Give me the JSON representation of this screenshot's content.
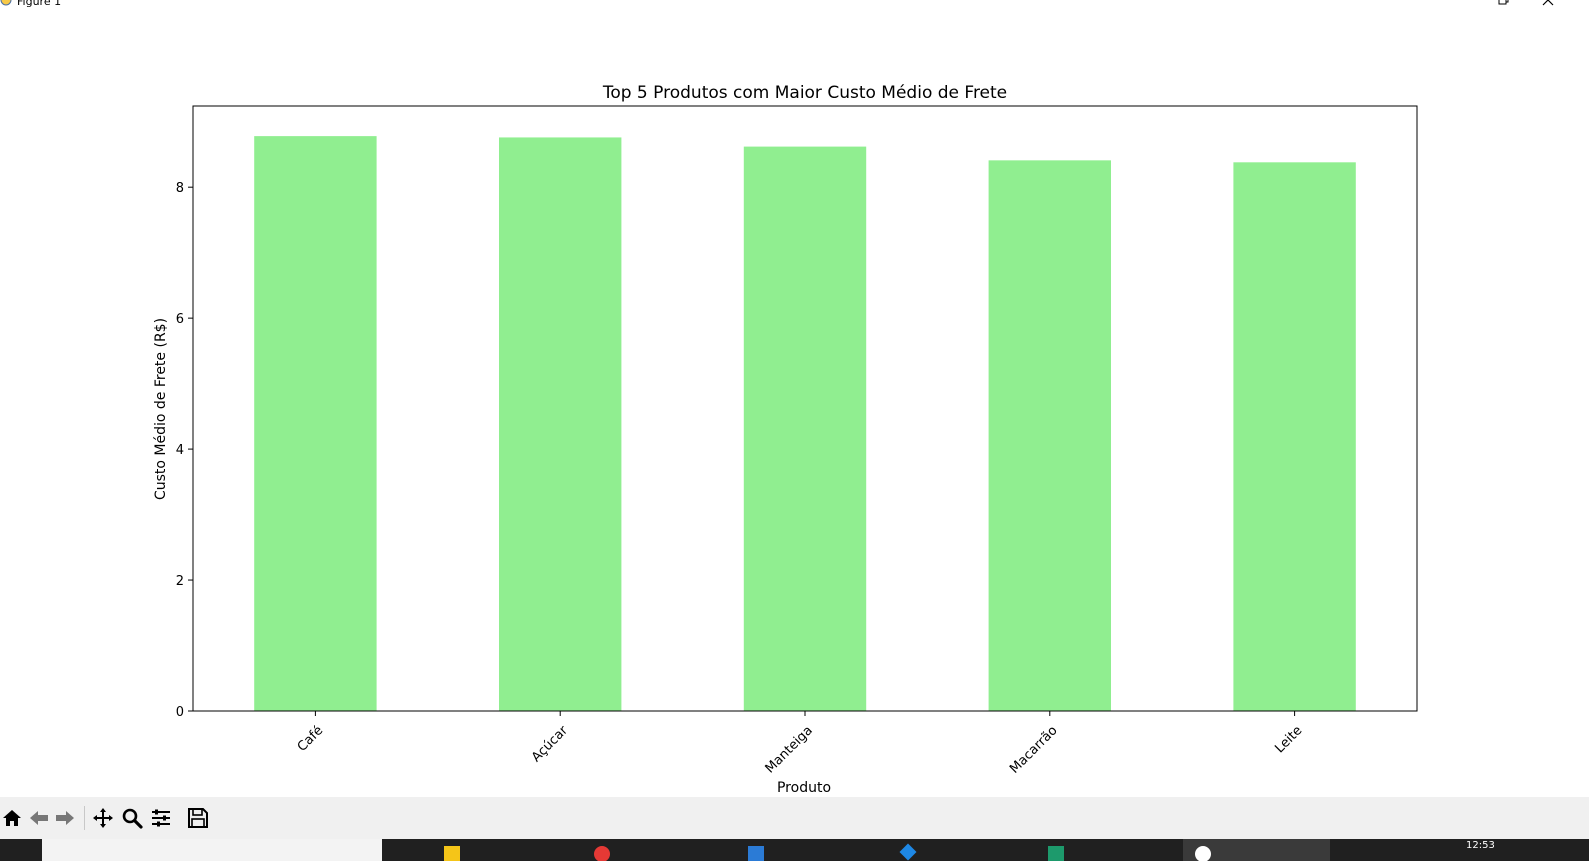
{
  "window": {
    "title": "Figure 1"
  },
  "chart_data": {
    "type": "bar",
    "title": "Top 5 Produtos com Maior Custo Médio de Frete",
    "xlabel": "Produto",
    "ylabel": "Custo Médio de Frete (R$)",
    "categories": [
      "Café",
      "Açúcar",
      "Manteiga",
      "Macarrão",
      "Leite"
    ],
    "values": [
      8.78,
      8.76,
      8.62,
      8.41,
      8.38
    ],
    "ylim": [
      0,
      9.24
    ],
    "yticks": [
      0,
      2,
      4,
      6,
      8
    ],
    "bar_color": "#90ee90",
    "grid": false,
    "legend": "none"
  },
  "toolbar": {
    "buttons": [
      "home-icon",
      "back-icon",
      "forward-icon",
      "pan-icon",
      "zoom-icon",
      "configure-icon",
      "save-icon"
    ]
  },
  "taskbar": {
    "clock": "12:53"
  }
}
